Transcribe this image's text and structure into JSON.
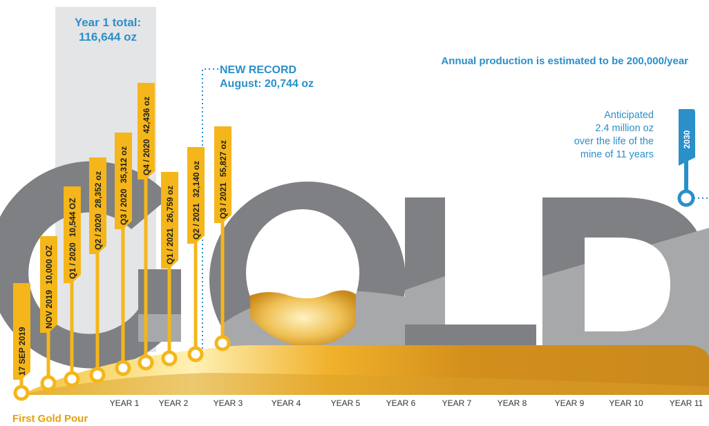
{
  "colors": {
    "gold": "#f4b61a",
    "gold_dark": "#c98d1a",
    "grey_dark": "#7f8083",
    "grey_light": "#a7a8aa",
    "blue": "#2b8fc9",
    "highlight": "#e4e5e7"
  },
  "headline_word": "GOLD",
  "year1_total": {
    "line1": "Year 1 total:",
    "line2": "116,644 oz"
  },
  "new_record": {
    "line1": "NEW RECORD",
    "line2": "August: 20,744 oz"
  },
  "annual_note": "Annual production is estimated to be 200,000/year",
  "anticipated": {
    "line1": "Anticipated",
    "line2": "2.4 million oz",
    "line3": "over the life of the",
    "line4": "mine of 11 years"
  },
  "end_year_tag": "2030",
  "first_pour_label": "First Gold Pour",
  "milestones": [
    {
      "label": "17 SEP 2019"
    },
    {
      "label": "NOV 2019",
      "value": "10,000 OZ"
    },
    {
      "label": "Q1 / 2020",
      "value": "10,544 OZ"
    },
    {
      "label": "Q2 / 2020",
      "value": "28,352 oz"
    },
    {
      "label": "Q3 / 2020",
      "value": "35,312 oz"
    },
    {
      "label": "Q4 / 2020",
      "value": "42,436 oz"
    },
    {
      "label": "Q1 / 2021",
      "value": "26,759 oz"
    },
    {
      "label": "Q2 / 2021",
      "value": "32,140 oz"
    },
    {
      "label": "Q3 / 2021",
      "value": "55,827 oz"
    }
  ],
  "year_axis": [
    "YEAR 1",
    "YEAR 2",
    "YEAR 3",
    "YEAR 4",
    "YEAR 5",
    "YEAR 6",
    "YEAR 7",
    "YEAR 8",
    "YEAR 9",
    "YEAR 10",
    "YEAR 11"
  ]
}
